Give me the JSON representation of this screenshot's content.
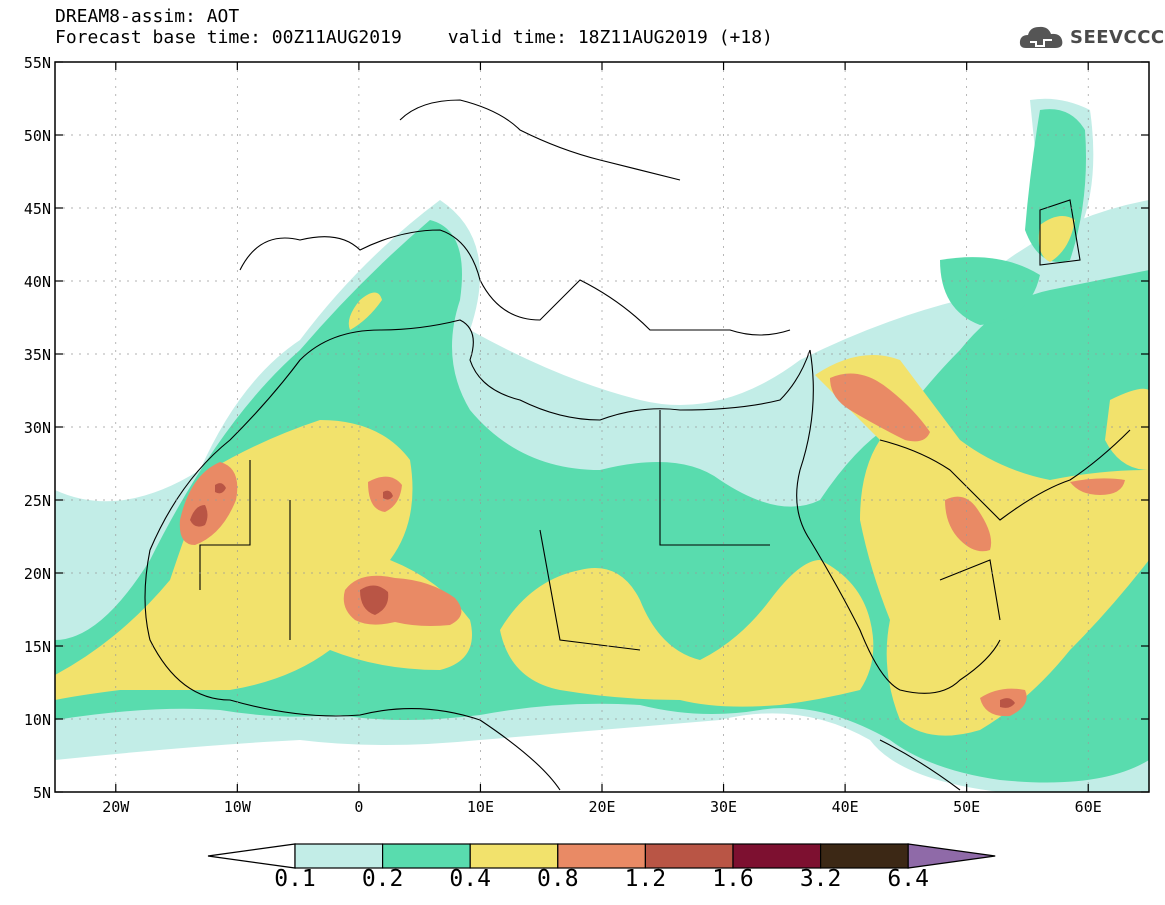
{
  "header": {
    "title": "DREAM8-assim: AOT",
    "base_time": "Forecast base time: 00Z11AUG2019",
    "valid_time": "valid time: 18Z11AUG2019 (+18)"
  },
  "logo": {
    "text": "SEEVCCC",
    "icon": "cloud-icon"
  },
  "axes": {
    "lat_labels": [
      "55N",
      "50N",
      "45N",
      "40N",
      "35N",
      "30N",
      "25N",
      "20N",
      "15N",
      "10N",
      "5N"
    ],
    "lon_labels": [
      "20W",
      "10W",
      "0",
      "10E",
      "20E",
      "30E",
      "40E",
      "50E",
      "60E"
    ]
  },
  "colorbar": {
    "labels": [
      "0.1",
      "0.2",
      "0.4",
      "0.8",
      "1.2",
      "1.6",
      "3.2",
      "6.4"
    ],
    "colors": [
      "#c2ede7",
      "#59dcae",
      "#f2e26c",
      "#e98a65",
      "#b95545",
      "#7d1030",
      "#3c2815",
      "#8f6aa8"
    ]
  },
  "map_colors": {
    "c02": "#59dcae",
    "c04": "#f2e26c",
    "c08": "#e98a65",
    "c12": "#b95545",
    "c01": "#c2ede7"
  }
}
